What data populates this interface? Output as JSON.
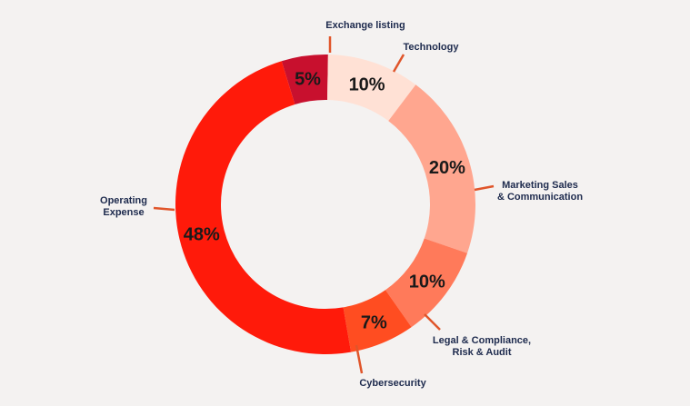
{
  "chart_data": {
    "type": "pie",
    "donut": true,
    "slices": [
      {
        "name": "Exchange listing",
        "lines": [
          "Exchange listing"
        ],
        "value": 5,
        "label": "5%",
        "color": "#c8102e"
      },
      {
        "name": "Technology",
        "lines": [
          "Technology"
        ],
        "value": 10,
        "label": "10%",
        "color": "#ffe1d5"
      },
      {
        "name": "Marketing Sales & Communication",
        "lines": [
          "Marketing Sales",
          "& Communication"
        ],
        "value": 20,
        "label": "20%",
        "color": "#ffa68f"
      },
      {
        "name": "Legal & Compliance, Risk & Audit",
        "lines": [
          "Legal & Compliance,",
          "Risk & Audit"
        ],
        "value": 10,
        "label": "10%",
        "color": "#ff7a5a"
      },
      {
        "name": "Cybersecurity",
        "lines": [
          "Cybersecurity"
        ],
        "value": 7,
        "label": "7%",
        "color": "#ff4d21"
      },
      {
        "name": "Operating Expense",
        "lines": [
          "Operating",
          "Expense"
        ],
        "value": 48,
        "label": "48%",
        "color": "#ff1a0a"
      }
    ]
  }
}
